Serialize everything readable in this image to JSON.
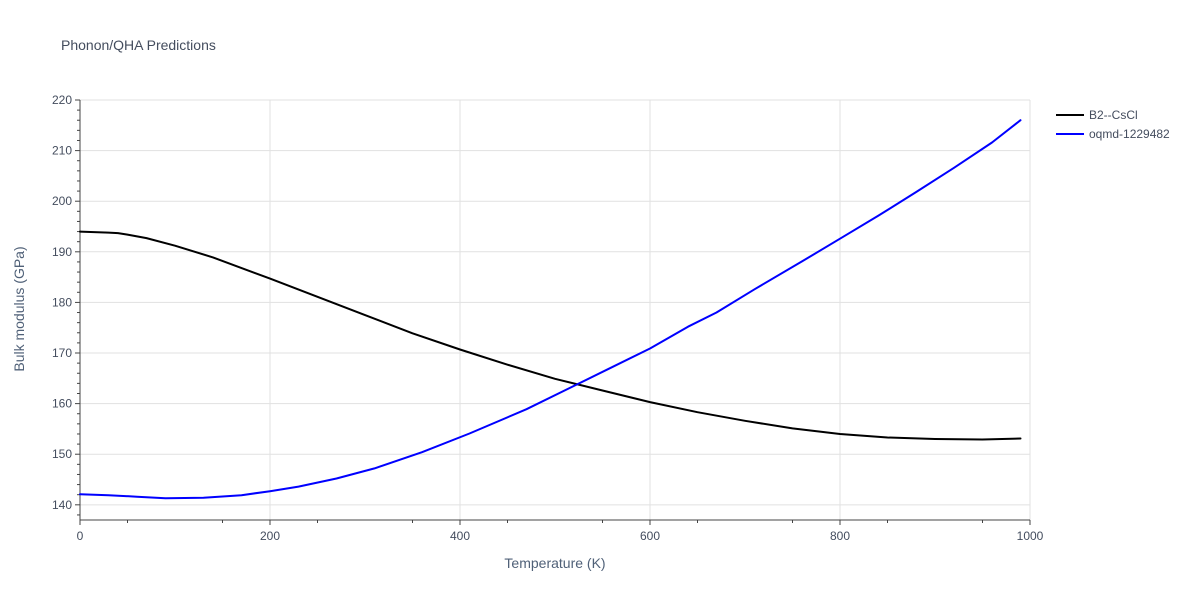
{
  "chart_data": {
    "type": "line",
    "title": "Phonon/QHA Predictions",
    "xlabel": "Temperature (K)",
    "ylabel": "Bulk modulus (GPa)",
    "xlim": [
      0,
      1000
    ],
    "ylim": [
      137,
      220
    ],
    "x_ticks": [
      0,
      200,
      400,
      600,
      800,
      1000
    ],
    "y_ticks": [
      140,
      150,
      160,
      170,
      180,
      190,
      200,
      210,
      220
    ],
    "grid": true,
    "legend_position": "top-right",
    "series": [
      {
        "name": "B2--CsCl",
        "color": "#000000",
        "x": [
          0,
          30,
          40,
          50,
          70,
          100,
          140,
          200,
          250,
          300,
          350,
          400,
          450,
          500,
          550,
          600,
          650,
          700,
          750,
          800,
          850,
          900,
          950,
          990
        ],
        "y": [
          194.0,
          193.8,
          193.7,
          193.4,
          192.7,
          191.2,
          188.9,
          184.7,
          181.1,
          177.5,
          173.9,
          170.7,
          167.7,
          164.9,
          162.6,
          160.3,
          158.3,
          156.6,
          155.1,
          154.0,
          153.3,
          153.0,
          152.9,
          153.1
        ]
      },
      {
        "name": "oqmd-1229482",
        "color": "#0000ff",
        "x": [
          0,
          30,
          60,
          90,
          130,
          170,
          200,
          230,
          270,
          310,
          360,
          410,
          470,
          520,
          560,
          600,
          640,
          670,
          710,
          760,
          800,
          840,
          880,
          920,
          960,
          990
        ],
        "y": [
          142.1,
          141.9,
          141.6,
          141.3,
          141.4,
          141.9,
          142.7,
          143.6,
          145.2,
          147.2,
          150.4,
          154.1,
          158.9,
          163.5,
          167.2,
          170.9,
          175.2,
          178.0,
          182.6,
          188.1,
          192.6,
          197.1,
          201.8,
          206.6,
          211.6,
          216.0
        ]
      }
    ]
  }
}
